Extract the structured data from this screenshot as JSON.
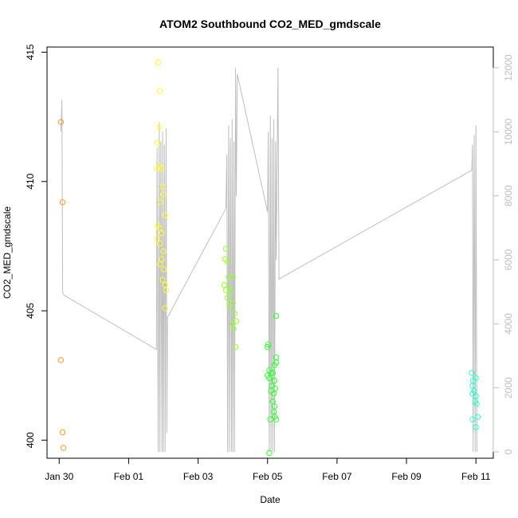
{
  "chart_data": {
    "type": "scatter",
    "title": "ATOM2 Southbound CO2_MED_gmdscale",
    "xlabel": "Date",
    "ylabel": "CO2_MED_gmdscale",
    "x_tick_labels": [
      "Jan 30",
      "Feb 01",
      "Feb 03",
      "Feb 05",
      "Feb 07",
      "Feb 09",
      "Feb 11"
    ],
    "x_tick_days": [
      0,
      2,
      4,
      6,
      8,
      10,
      12
    ],
    "y_tick_labels": [
      "400",
      "405",
      "410",
      "415"
    ],
    "y_ticks": [
      400,
      405,
      410,
      415
    ],
    "ylim": [
      399.3,
      415.2
    ],
    "xlim_days": [
      -0.35,
      12.5
    ],
    "y2_tick_labels": [
      "0",
      "2000",
      "4000",
      "6000",
      "8000",
      "10000",
      "12000"
    ],
    "y2_ticks": [
      0,
      2000,
      4000,
      6000,
      8000,
      10000,
      12000
    ],
    "y2lim": [
      -200,
      12650
    ],
    "grid": false,
    "series": [
      {
        "color": "#ff9933",
        "points": [
          [
            0.05,
            412.3
          ],
          [
            0.1,
            409.2
          ],
          [
            0.05,
            403.1
          ],
          [
            0.1,
            400.3
          ],
          [
            0.12,
            399.7
          ]
        ]
      },
      {
        "color": "#ffff33",
        "points": [
          [
            2.85,
            414.6
          ],
          [
            2.9,
            413.5
          ],
          [
            2.88,
            412.1
          ],
          [
            2.83,
            411.5
          ],
          [
            2.82,
            410.5
          ],
          [
            2.9,
            410.6
          ],
          [
            2.95,
            410.5
          ],
          [
            2.98,
            409.8
          ],
          [
            3.0,
            409.5
          ],
          [
            2.92,
            409.2
          ],
          [
            3.05,
            408.7
          ],
          [
            2.84,
            408.3
          ],
          [
            2.88,
            408.2
          ],
          [
            2.95,
            408.0
          ],
          [
            2.82,
            407.8
          ],
          [
            2.9,
            407.6
          ],
          [
            3.0,
            407.3
          ],
          [
            2.95,
            407.0
          ],
          [
            2.9,
            406.8
          ],
          [
            3.02,
            406.6
          ],
          [
            2.98,
            406.2
          ],
          [
            3.05,
            406.0
          ],
          [
            3.08,
            405.8
          ],
          [
            3.05,
            405.1
          ]
        ]
      },
      {
        "color": "#99ff33",
        "points": [
          [
            4.8,
            407.4
          ],
          [
            4.78,
            407.0
          ],
          [
            4.85,
            406.9
          ],
          [
            4.88,
            406.3
          ],
          [
            5.0,
            406.3
          ],
          [
            4.75,
            406.0
          ],
          [
            4.8,
            405.8
          ],
          [
            4.9,
            405.9
          ],
          [
            4.95,
            405.7
          ],
          [
            4.85,
            405.5
          ],
          [
            4.9,
            405.2
          ],
          [
            5.0,
            405.3
          ],
          [
            5.05,
            404.9
          ],
          [
            5.1,
            404.6
          ],
          [
            5.0,
            404.5
          ],
          [
            5.02,
            404.3
          ],
          [
            5.08,
            403.6
          ]
        ]
      },
      {
        "color": "#33ff33",
        "points": [
          [
            6.0,
            403.6
          ],
          [
            6.02,
            403.7
          ],
          [
            6.25,
            403.2
          ],
          [
            6.25,
            403.0
          ],
          [
            6.2,
            402.9
          ],
          [
            6.05,
            402.7
          ],
          [
            6.1,
            402.6
          ],
          [
            6.0,
            402.5
          ],
          [
            6.15,
            402.6
          ],
          [
            6.05,
            402.4
          ],
          [
            6.2,
            402.3
          ],
          [
            6.12,
            402.1
          ],
          [
            6.22,
            402.0
          ],
          [
            6.1,
            401.9
          ],
          [
            6.18,
            401.8
          ],
          [
            6.15,
            401.5
          ],
          [
            6.2,
            401.3
          ],
          [
            6.18,
            401.1
          ],
          [
            6.08,
            400.8
          ],
          [
            6.2,
            400.9
          ],
          [
            6.25,
            400.8
          ],
          [
            6.05,
            399.5
          ],
          [
            6.25,
            404.8
          ]
        ]
      },
      {
        "color": "#33ffcc",
        "points": [
          [
            11.88,
            402.6
          ],
          [
            11.92,
            402.3
          ],
          [
            12.0,
            402.4
          ],
          [
            11.9,
            402.1
          ],
          [
            11.95,
            401.9
          ],
          [
            11.9,
            401.8
          ],
          [
            12.0,
            401.7
          ],
          [
            11.98,
            401.5
          ],
          [
            12.02,
            401.4
          ],
          [
            11.9,
            400.8
          ],
          [
            12.05,
            400.9
          ],
          [
            12.0,
            400.5
          ]
        ]
      }
    ],
    "line_series": {
      "color": "#bebebe",
      "axis": "right",
      "points": [
        [
          0.05,
          10000
        ],
        [
          0.08,
          11000
        ],
        [
          0.1,
          5000
        ],
        [
          0.13,
          4900
        ],
        [
          2.8,
          3200
        ],
        [
          2.82,
          9500
        ],
        [
          2.85,
          0
        ],
        [
          2.88,
          10300
        ],
        [
          2.9,
          0
        ],
        [
          2.93,
          9700
        ],
        [
          2.96,
          0
        ],
        [
          2.98,
          10000
        ],
        [
          3.0,
          0
        ],
        [
          3.03,
          9600
        ],
        [
          3.05,
          0
        ],
        [
          3.08,
          10100
        ],
        [
          3.1,
          600
        ],
        [
          3.12,
          4200
        ],
        [
          4.8,
          7600
        ],
        [
          4.83,
          9300
        ],
        [
          4.85,
          0
        ],
        [
          4.88,
          10200
        ],
        [
          4.9,
          0
        ],
        [
          4.93,
          9800
        ],
        [
          4.96,
          0
        ],
        [
          4.98,
          10400
        ],
        [
          5.0,
          0
        ],
        [
          5.03,
          9700
        ],
        [
          5.05,
          0
        ],
        [
          5.08,
          12000
        ],
        [
          5.1,
          8000
        ],
        [
          5.13,
          11800
        ],
        [
          6.0,
          7500
        ],
        [
          6.02,
          10000
        ],
        [
          6.05,
          0
        ],
        [
          6.08,
          10500
        ],
        [
          6.1,
          0
        ],
        [
          6.13,
          9800
        ],
        [
          6.15,
          0
        ],
        [
          6.18,
          10400
        ],
        [
          6.2,
          0
        ],
        [
          6.23,
          9700
        ],
        [
          6.25,
          6000
        ],
        [
          6.3,
          12000
        ],
        [
          6.33,
          5400
        ],
        [
          11.88,
          8800
        ],
        [
          11.9,
          9600
        ],
        [
          11.92,
          0
        ],
        [
          11.95,
          9900
        ],
        [
          11.98,
          0
        ],
        [
          12.0,
          10200
        ],
        [
          12.03,
          0
        ]
      ]
    }
  }
}
